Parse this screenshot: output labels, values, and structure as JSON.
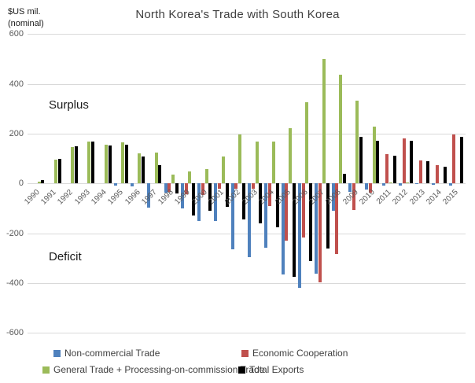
{
  "header": {
    "title": "North Korea's Trade with South Korea",
    "unit_line1": "$US mil.",
    "unit_line2": "(nominal)"
  },
  "annotations": {
    "surplus": "Surplus",
    "deficit": "Deficit"
  },
  "chart_data": {
    "type": "bar",
    "title": "North Korea's Trade with South Korea",
    "ylabel": "$US mil. (nominal)",
    "ylim": [
      -600,
      600
    ],
    "ytick_labels": [
      "600",
      "400",
      "200",
      "0",
      "-200",
      "-400",
      "-600"
    ],
    "grid": true,
    "legend_position": "bottom",
    "categories": [
      "1990",
      "1991",
      "1992",
      "1993",
      "1994",
      "1995",
      "1996",
      "1997",
      "1998",
      "1999",
      "2000",
      "2001",
      "2002",
      "2003",
      "2004",
      "2005",
      "2006",
      "2007",
      "2008",
      "2009",
      "2010",
      "2011",
      "2012",
      "2013",
      "2014",
      "2015"
    ],
    "series": [
      {
        "name": "Non-commercial Trade",
        "color": "#4F81BD",
        "values": [
          0,
          0,
          0,
          0,
          0,
          -10,
          -12,
          -98,
          -37,
          -100,
          -150,
          -150,
          -265,
          -295,
          -258,
          -365,
          -419,
          -363,
          -111,
          -34,
          -23,
          -8,
          -8,
          -3,
          -5,
          -8
        ]
      },
      {
        "name": "Economic Cooperation",
        "color": "#C0504D",
        "values": [
          0,
          0,
          0,
          0,
          0,
          0,
          0,
          0,
          -35,
          -45,
          -48,
          -20,
          -20,
          -20,
          -90,
          -230,
          -216,
          -398,
          -284,
          -107,
          -37,
          118,
          180,
          94,
          73,
          198
        ]
      },
      {
        "name": "General Trade + Processing-on-commission Trade",
        "color": "#9BBB59",
        "values": [
          8,
          95,
          147,
          167,
          155,
          166,
          121,
          124,
          37,
          47,
          58,
          107,
          197,
          170,
          168,
          223,
          325,
          500,
          437,
          333,
          230,
          4,
          4,
          0,
          0,
          0
        ]
      },
      {
        "name": "Total Exports",
        "color": "#000000",
        "values": [
          13,
          100,
          150,
          170,
          152,
          156,
          110,
          75,
          -39,
          -128,
          -110,
          -95,
          -145,
          -160,
          -177,
          -374,
          -311,
          -260,
          40,
          188,
          172,
          111,
          171,
          89,
          68,
          187
        ]
      }
    ]
  }
}
